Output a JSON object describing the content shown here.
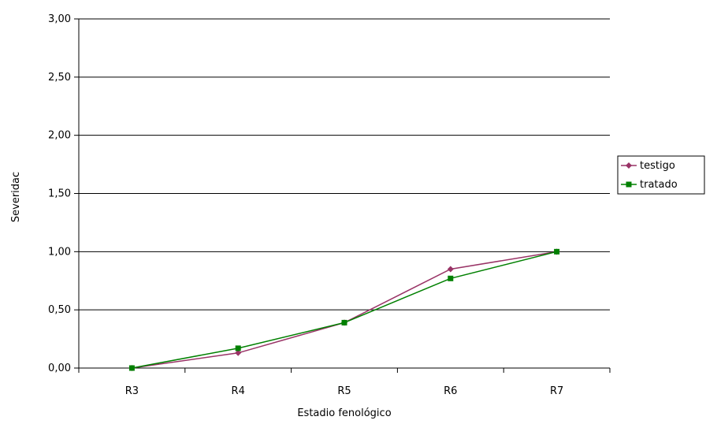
{
  "chart_data": {
    "type": "line",
    "categories": [
      "R3",
      "R4",
      "R5",
      "R6",
      "R7"
    ],
    "series": [
      {
        "name": "testigo",
        "values": [
          0.0,
          0.13,
          0.39,
          0.85,
          1.0
        ],
        "color": "#993366",
        "marker": "diamond"
      },
      {
        "name": "tratado",
        "values": [
          0.0,
          0.17,
          0.39,
          0.77,
          1.0
        ],
        "color": "#008000",
        "marker": "square"
      }
    ],
    "title": "",
    "xlabel": "Estadio fenológico",
    "ylabel": "Severidac",
    "ylim": [
      0,
      3
    ],
    "yticks": [
      "0,00",
      "0,50",
      "1,00",
      "1,50",
      "2,00",
      "2,50",
      "3,00"
    ],
    "grid": true,
    "legend_position": "right"
  }
}
